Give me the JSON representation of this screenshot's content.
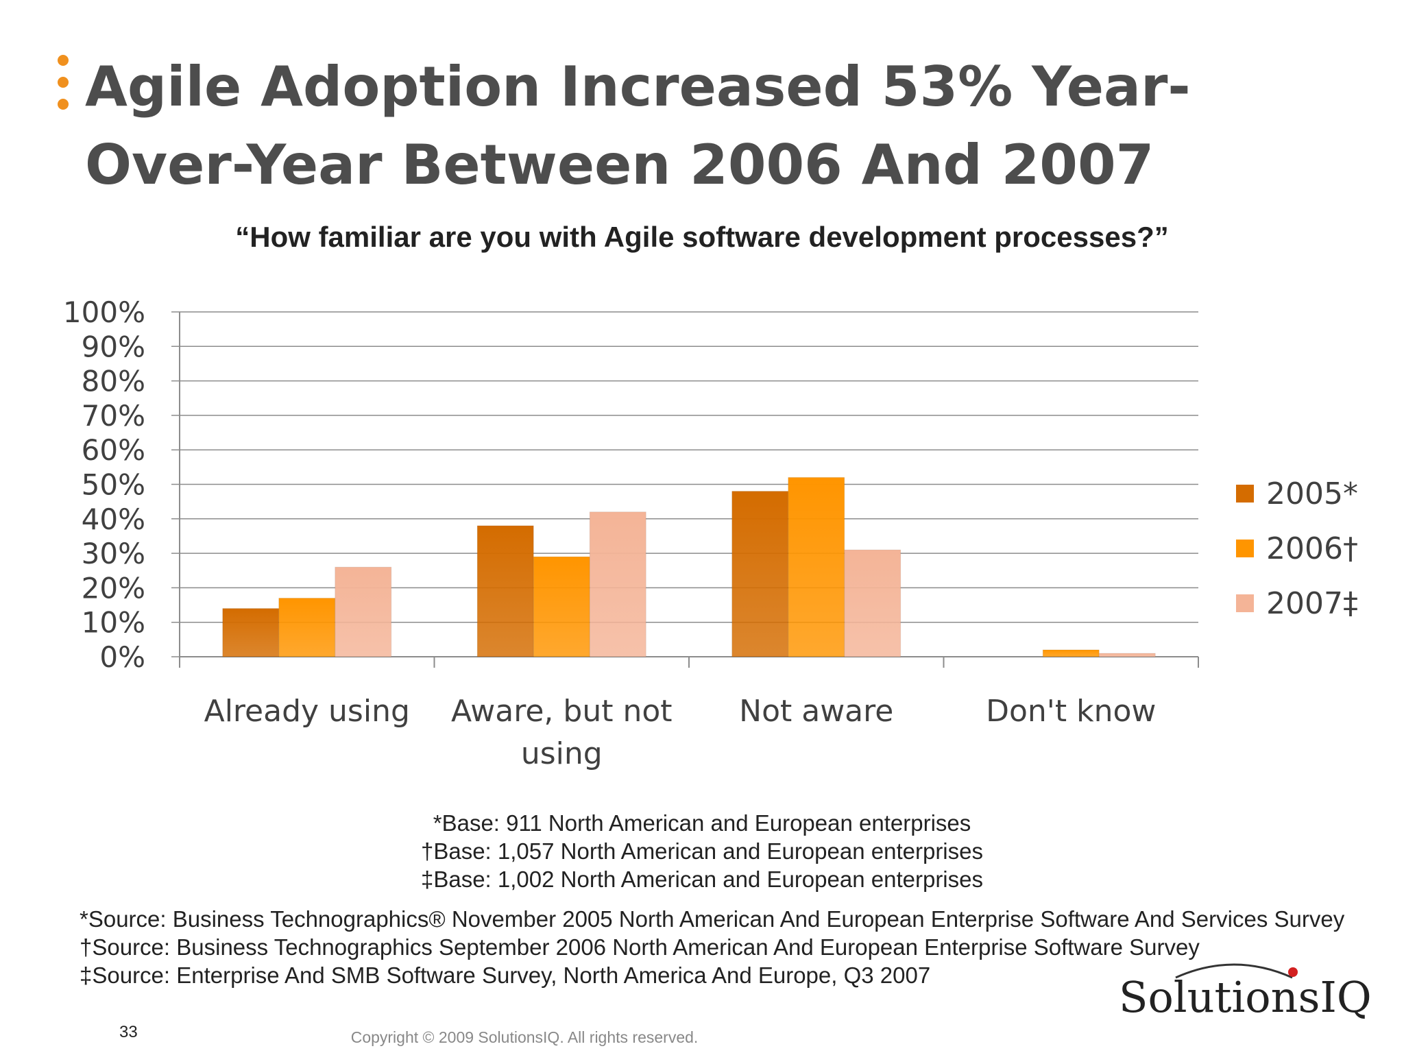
{
  "slide": {
    "title_line1": "Agile Adoption Increased 53% Year-",
    "title_line2": "Over-Year Between 2006 And 2007",
    "page_number": "33",
    "copyright": "Copyright © 2009 SolutionsIQ. All rights reserved.",
    "logo_text": "SolutionsIQ",
    "accent_color": "#f0901e"
  },
  "footnotes": {
    "bases": [
      "*Base: 911 North American and European enterprises",
      "†Base: 1,057 North American and European enterprises",
      "‡Base: 1,002 North American and European enterprises"
    ],
    "sources": [
      "*Source: Business Technographics® November 2005 North American And European Enterprise Software And Services Survey",
      "†Source: Business Technographics September 2006 North American And European Enterprise Software Survey",
      "‡Source: Enterprise And SMB Software Survey, North America And Europe, Q3 2007"
    ]
  },
  "chart_data": {
    "type": "bar",
    "title": "“How familiar are you with Agile software development processes?”",
    "categories": [
      [
        "Already using"
      ],
      [
        "Aware, but not",
        "using"
      ],
      [
        "Not aware"
      ],
      [
        "Don't know"
      ]
    ],
    "series": [
      {
        "name": "2005*",
        "values": [
          14,
          38,
          48,
          0
        ],
        "color": "#d46c00"
      },
      {
        "name": "2006†",
        "values": [
          17,
          29,
          52,
          2
        ],
        "color": "#ff9500"
      },
      {
        "name": "2007‡",
        "values": [
          26,
          42,
          31,
          1
        ],
        "color": "#f4b497"
      }
    ],
    "ylim": [
      0,
      100
    ],
    "yticks": [
      "0%",
      "10%",
      "20%",
      "30%",
      "40%",
      "50%",
      "60%",
      "70%",
      "80%",
      "90%",
      "100%"
    ],
    "grid": true,
    "legend_position": "right"
  }
}
